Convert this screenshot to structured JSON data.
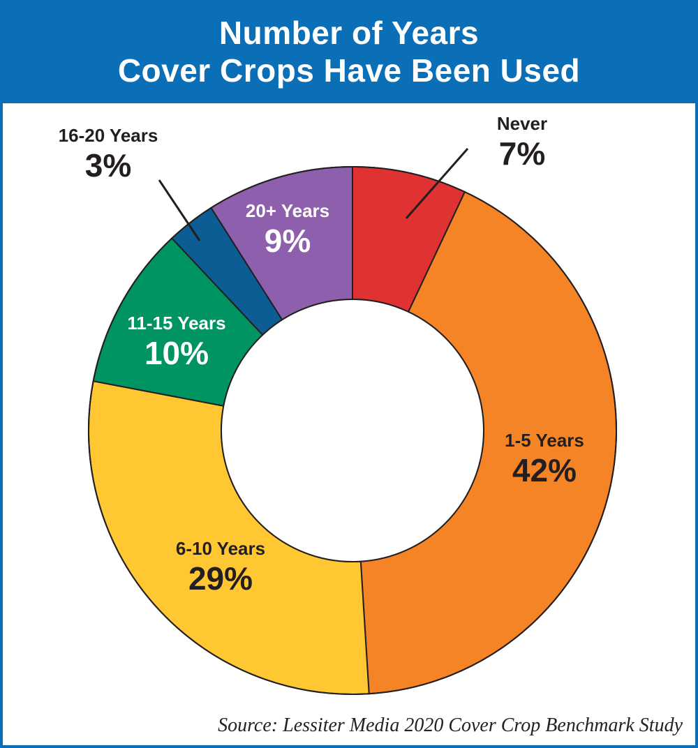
{
  "header": {
    "title_line1": "Number of Years",
    "title_line2": "Cover Crops Have Been Used"
  },
  "chart_data": {
    "type": "pie",
    "style": "donut",
    "title": "Number of Years Cover Crops Have Been Used",
    "categories": [
      "Never",
      "1-5 Years",
      "6-10 Years",
      "11-15 Years",
      "16-20 Years",
      "20+ Years"
    ],
    "values": [
      7,
      42,
      29,
      10,
      3,
      9
    ],
    "value_labels": [
      "7%",
      "42%",
      "29%",
      "10%",
      "3%",
      "9%"
    ],
    "colors": [
      "#e03232",
      "#f58426",
      "#ffc832",
      "#009463",
      "#0b5d94",
      "#8e5fad"
    ],
    "label_colors": [
      "#231f20",
      "#231f20",
      "#231f20",
      "#ffffff",
      "#231f20",
      "#ffffff"
    ],
    "source": "Source: Lessiter Media 2020 Cover Crop Benchmark Study"
  },
  "colors": {
    "header_background": "#0a6fb7",
    "header_text": "#ffffff",
    "frame_border": "#0a6fb7"
  }
}
